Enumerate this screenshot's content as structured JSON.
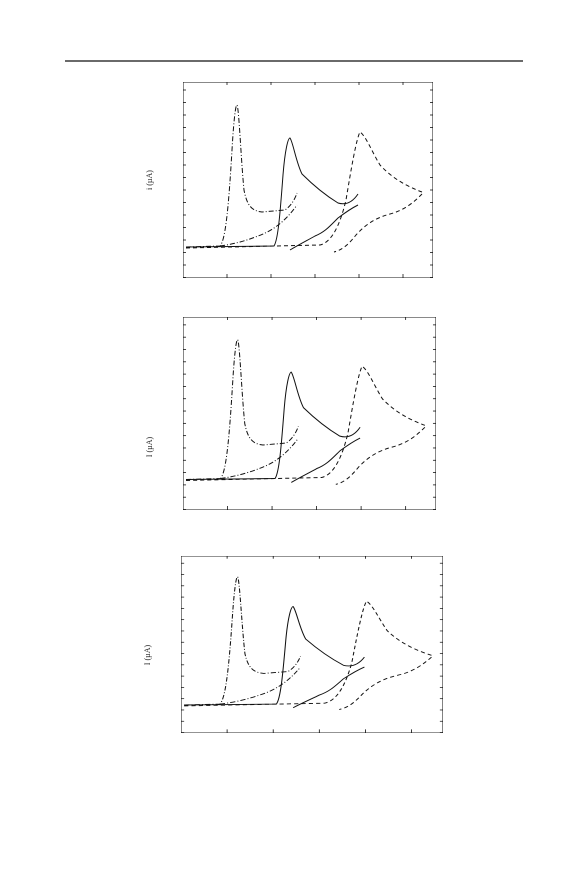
{
  "figures": [
    {
      "ylabel": "i (µA)"
    },
    {
      "ylabel": "I (µA)"
    },
    {
      "ylabel": "I (µA)"
    }
  ]
}
